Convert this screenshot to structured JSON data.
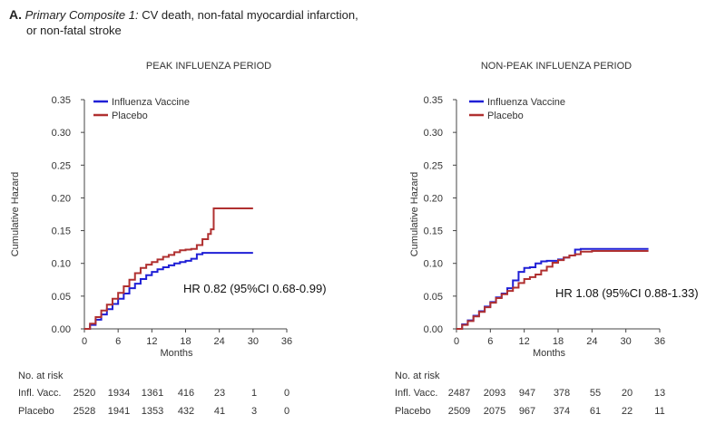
{
  "figure": {
    "label": "A.",
    "subtitle_italic": "Primary Composite 1:",
    "subtitle_line1": "CV death, non-fatal myocardial infarction,",
    "subtitle_line2": "or non-fatal stroke"
  },
  "risk_table_label": "No. at risk",
  "colors": {
    "vaccine": "#1f1fd6",
    "placebo": "#b03030"
  },
  "chart_data": [
    {
      "type": "line",
      "title": "PEAK INFLUENZA PERIOD",
      "xlabel": "Months",
      "ylabel": "Cumulative Hazard",
      "xlim": [
        0,
        36
      ],
      "ylim": [
        0,
        0.35
      ],
      "xticks": [
        0,
        6,
        12,
        18,
        24,
        30,
        36
      ],
      "yticks": [
        "0.00",
        "0.05",
        "0.10",
        "0.15",
        "0.20",
        "0.25",
        "0.30",
        "0.35"
      ],
      "legend": [
        "Influenza Vaccine",
        "Placebo"
      ],
      "annotation": "HR 0.82 (95%CI 0.68-0.99)",
      "series": [
        {
          "name": "Influenza Vaccine",
          "color": "#1f1fd6",
          "x": [
            0,
            1,
            2,
            3,
            4,
            5,
            6,
            7,
            8,
            9,
            10,
            11,
            12,
            13,
            14,
            15,
            16,
            17,
            18,
            19,
            20,
            21,
            22,
            25,
            30
          ],
          "y": [
            0,
            0.006,
            0.014,
            0.022,
            0.03,
            0.038,
            0.046,
            0.054,
            0.062,
            0.069,
            0.076,
            0.082,
            0.087,
            0.091,
            0.094,
            0.097,
            0.1,
            0.102,
            0.104,
            0.107,
            0.114,
            0.116,
            0.116,
            0.116,
            0.116
          ]
        },
        {
          "name": "Placebo",
          "color": "#b03030",
          "x": [
            0,
            1,
            2,
            3,
            4,
            5,
            6,
            7,
            8,
            9,
            10,
            11,
            12,
            13,
            14,
            15,
            16,
            17,
            18,
            19,
            20,
            21,
            22,
            22.5,
            23,
            24,
            30
          ],
          "y": [
            0,
            0.008,
            0.018,
            0.028,
            0.037,
            0.046,
            0.055,
            0.065,
            0.075,
            0.085,
            0.093,
            0.098,
            0.102,
            0.106,
            0.11,
            0.113,
            0.117,
            0.12,
            0.121,
            0.122,
            0.128,
            0.137,
            0.145,
            0.152,
            0.184,
            0.184,
            0.184
          ]
        }
      ],
      "risk_table": [
        {
          "label": "Infl. Vacc.",
          "values": [
            "2520",
            "1934",
            "1361",
            "416",
            "23",
            "1",
            "0"
          ]
        },
        {
          "label": "Placebo",
          "values": [
            "2528",
            "1941",
            "1353",
            "432",
            "41",
            "3",
            "0"
          ]
        }
      ]
    },
    {
      "type": "line",
      "title": "NON-PEAK INFLUENZA PERIOD",
      "xlabel": "Months",
      "ylabel": "Cumulative Hazard",
      "xlim": [
        0,
        36
      ],
      "ylim": [
        0,
        0.35
      ],
      "xticks": [
        0,
        6,
        12,
        18,
        24,
        30,
        36
      ],
      "yticks": [
        "0.00",
        "0.05",
        "0.10",
        "0.15",
        "0.20",
        "0.25",
        "0.30",
        "0.35"
      ],
      "legend": [
        "Influenza Vaccine",
        "Placebo"
      ],
      "annotation": "HR 1.08 (95%CI 0.88-1.33)",
      "series": [
        {
          "name": "Influenza Vaccine",
          "color": "#1f1fd6",
          "x": [
            0,
            1,
            2,
            3,
            4,
            5,
            6,
            7,
            8,
            9,
            10,
            11,
            12,
            13,
            14,
            15,
            16,
            17,
            18,
            19,
            20,
            21,
            22,
            24,
            30,
            34
          ],
          "y": [
            0,
            0.007,
            0.013,
            0.02,
            0.027,
            0.034,
            0.041,
            0.048,
            0.054,
            0.062,
            0.074,
            0.087,
            0.093,
            0.094,
            0.1,
            0.103,
            0.104,
            0.104,
            0.106,
            0.109,
            0.112,
            0.121,
            0.122,
            0.122,
            0.122,
            0.122
          ]
        },
        {
          "name": "Placebo",
          "color": "#b03030",
          "x": [
            0,
            1,
            2,
            3,
            4,
            5,
            6,
            7,
            8,
            9,
            10,
            11,
            12,
            13,
            14,
            15,
            16,
            17,
            18,
            19,
            20,
            21,
            22,
            24,
            30,
            34
          ],
          "y": [
            0,
            0.006,
            0.012,
            0.019,
            0.026,
            0.033,
            0.04,
            0.047,
            0.053,
            0.058,
            0.063,
            0.07,
            0.076,
            0.079,
            0.083,
            0.089,
            0.095,
            0.101,
            0.105,
            0.109,
            0.112,
            0.114,
            0.118,
            0.119,
            0.119,
            0.119
          ]
        }
      ],
      "risk_table": [
        {
          "label": "Infl. Vacc.",
          "values": [
            "2487",
            "2093",
            "947",
            "378",
            "55",
            "20",
            "13"
          ]
        },
        {
          "label": "Placebo",
          "values": [
            "2509",
            "2075",
            "967",
            "374",
            "61",
            "22",
            "11"
          ]
        }
      ]
    }
  ]
}
